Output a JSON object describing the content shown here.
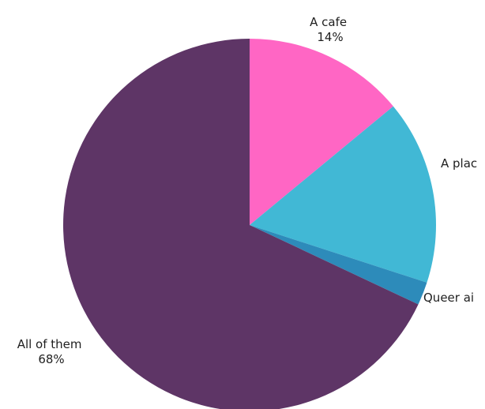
{
  "chart_data": {
    "type": "pie",
    "title": "",
    "legend": "none",
    "colors": [
      "#FF66C4",
      "#41B8D5",
      "#2D8BBA",
      "#5E3566"
    ],
    "slices": [
      {
        "label": "A cafe",
        "percent_text": "14%",
        "value": 14
      },
      {
        "label": "A plac",
        "percent_text": "",
        "value": 16
      },
      {
        "label": "Queer ai",
        "percent_text": "",
        "value": 2
      },
      {
        "label": "All of them",
        "percent_text": "68%",
        "value": 68
      }
    ]
  }
}
